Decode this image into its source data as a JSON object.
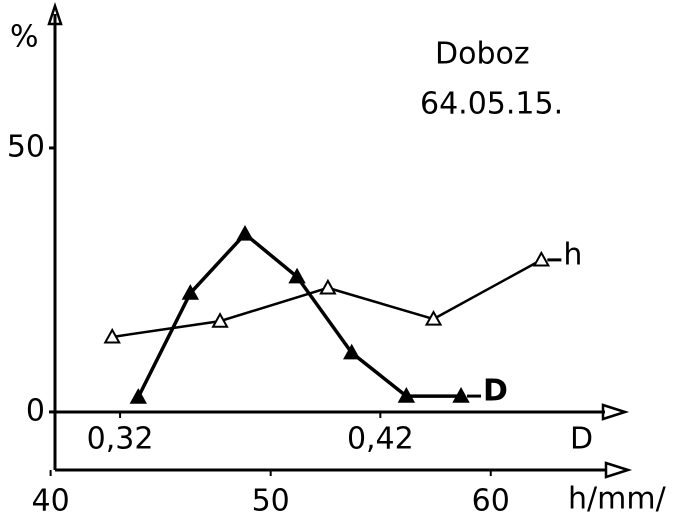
{
  "chart_data": {
    "type": "line",
    "title": "Doboz",
    "subtitle": "64.05.15.",
    "ylabel": "%",
    "xlabel": "D",
    "x2label": "h/mm/",
    "ylim": [
      -11,
      76
    ],
    "yticks": [
      0,
      50
    ],
    "xlim": [
      0.295,
      0.514
    ],
    "xticks": [
      {
        "value": 0.32,
        "label": "0,32"
      },
      {
        "value": 0.42,
        "label": "0,42"
      }
    ],
    "x2lim": [
      40.2,
      66.1
    ],
    "x2ticks": [
      40,
      50,
      60
    ],
    "series": [
      {
        "name": "D",
        "color": "#000000",
        "filled": true,
        "x": [
          0.327,
          0.347,
          0.368,
          0.388,
          0.409,
          0.43,
          0.451
        ],
        "values": [
          2.8,
          22.5,
          33.7,
          25.6,
          11.2,
          3.0,
          3.0
        ]
      },
      {
        "name": "h",
        "color": "#000000",
        "filled": false,
        "axis": "x2",
        "x": [
          42.8,
          47.7,
          52.6,
          57.4,
          62.3
        ],
        "values": [
          14.2,
          17.2,
          23.5,
          17.6,
          28.8
        ]
      }
    ]
  }
}
